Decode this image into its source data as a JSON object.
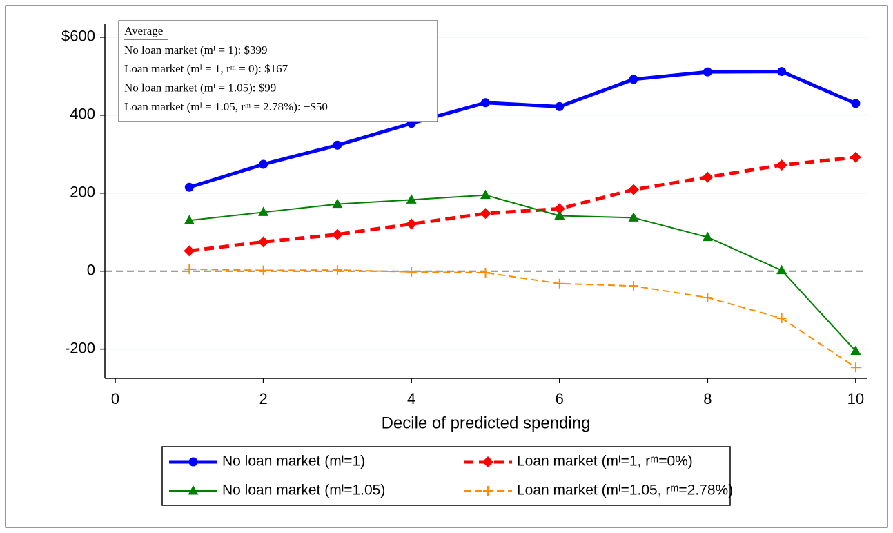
{
  "chart_data": {
    "type": "line",
    "xlabel": "Decile of predicted spending",
    "x": [
      1,
      2,
      3,
      4,
      5,
      6,
      7,
      8,
      9,
      10
    ],
    "series": [
      {
        "name": "No loan market (mᴵ=1)",
        "color": "#0000ff",
        "values": [
          215,
          274,
          323,
          379,
          432,
          422,
          492,
          511,
          512,
          430
        ]
      },
      {
        "name": "Loan market (mᴵ=1, rᵐ=0%)",
        "color": "#ff0000",
        "values": [
          52,
          75,
          94,
          121,
          148,
          160,
          209,
          241,
          272,
          292
        ]
      },
      {
        "name": "No loan market (mᴵ=1.05)",
        "color": "#008000",
        "values": [
          130,
          151,
          172,
          183,
          195,
          142,
          137,
          87,
          2,
          -205
        ]
      },
      {
        "name": "Loan market (mᴵ=1.05, rᵐ=2.78%)",
        "color": "#ff8c00",
        "values": [
          5,
          2,
          3,
          -2,
          -4,
          -32,
          -38,
          -68,
          -121,
          -247
        ]
      }
    ],
    "xlim": [
      -0.14,
      10.15
    ],
    "xticks": [
      0,
      2,
      4,
      6,
      8,
      10
    ],
    "ylim": [
      -275,
      660
    ],
    "yticks": [
      {
        "value": 600,
        "label": "$600"
      },
      400,
      200,
      0,
      -200
    ],
    "grid": true,
    "annotation": {
      "title": "Average",
      "lines": [
        "No loan market (mᴵ = 1): $399",
        "Loan market (mᴵ = 1, rᵐ = 0): $167",
        "No loan market (mᴵ = 1.05): $99",
        "Loan market (mᴵ = 1.05, rᵐ = 2.78%): −$50"
      ]
    }
  }
}
